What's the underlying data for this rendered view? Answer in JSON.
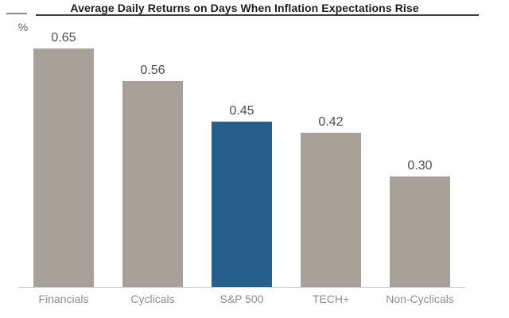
{
  "header": {
    "unit_label": "%"
  },
  "chart_data": {
    "type": "bar",
    "title": "Average Daily Returns on Days When Inflation Expectations Rise",
    "categories": [
      "Financials",
      "Cyclicals",
      "S&P 500",
      "TECH+",
      "Non-Cyclicals"
    ],
    "values": [
      0.65,
      0.56,
      0.45,
      0.42,
      0.3
    ],
    "value_labels": [
      "0.65",
      "0.56",
      "0.45",
      "0.42",
      "0.30"
    ],
    "xlabel": "",
    "ylabel": "%",
    "ylim": [
      0,
      0.78
    ],
    "grid": "off",
    "legend": "none",
    "highlight_index": 2,
    "colors": {
      "bar_default": "#a8a19a",
      "bar_highlight": "#275f8c",
      "value_label": "#4d4d4d",
      "category_label": "#8f8f8f",
      "title_text": "#1e1e1e",
      "title_underline": "#3f3f3f",
      "baseline": "#cfcfcf"
    }
  }
}
